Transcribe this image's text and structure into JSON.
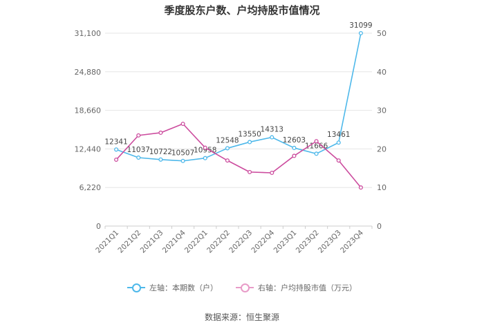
{
  "chart_data": {
    "type": "line",
    "title": "季度股东户数、户均持股市值情况",
    "source": "数据来源：恒生聚源",
    "categories": [
      "2021Q1",
      "2021Q2",
      "2021Q3",
      "2021Q4",
      "2022Q1",
      "2022Q2",
      "2022Q3",
      "2022Q4",
      "2023Q1",
      "2023Q2",
      "2023Q3",
      "2023Q4"
    ],
    "left_axis": {
      "ticks": [
        "0",
        "6,220",
        "12,440",
        "18,660",
        "24,880",
        "31,100"
      ],
      "ylim": [
        0,
        31100
      ]
    },
    "right_axis": {
      "ticks": [
        "0",
        "10",
        "20",
        "30",
        "40",
        "50"
      ],
      "ylim": [
        0,
        50
      ]
    },
    "series": [
      {
        "name": "左轴：本期数（户）",
        "axis": "left",
        "color": "#4db8ea",
        "values": [
          12341,
          11037,
          10722,
          10507,
          10958,
          12548,
          13550,
          14313,
          12603,
          11666,
          13461,
          31099
        ],
        "labels": [
          "12341",
          "11037",
          "10722",
          "10507",
          "10958",
          "12548",
          "13550",
          "14313",
          "12603",
          "11666",
          "13461",
          "31099"
        ]
      },
      {
        "name": "右轴：户均持股市值（万元）",
        "axis": "right",
        "color": "#cc4c9e",
        "values": [
          17.2,
          23.5,
          24.2,
          26.5,
          20.3,
          17.0,
          14.0,
          13.8,
          18.2,
          22.0,
          17.0,
          10.0
        ]
      }
    ],
    "grid": true,
    "legend_position": "bottom"
  }
}
